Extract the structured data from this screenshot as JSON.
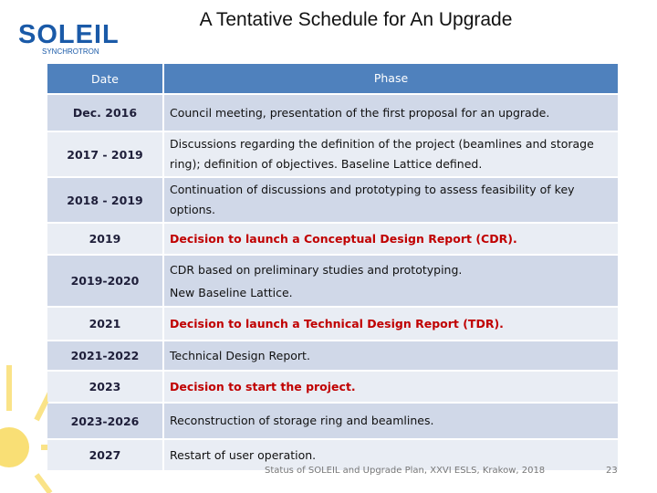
{
  "logo": {
    "name": "SOLEIL",
    "subtitle": "SYNCHROTRON"
  },
  "header": {
    "title": "A Tentative Schedule for An Upgrade"
  },
  "table": {
    "columns": [
      "Date",
      "Phase"
    ],
    "rows": [
      {
        "date": "Dec. 2016",
        "phase": [
          "Council meeting, presentation of the first proposal for an upgrade."
        ],
        "highlight": false
      },
      {
        "date": "2017 - 2019",
        "phase": [
          "Discussions regarding the definition of the project (beamlines and storage ring); definition of objectives. Baseline Lattice defined."
        ],
        "highlight": false
      },
      {
        "date": "2018 - 2019",
        "phase": [
          "Continuation of discussions and prototyping to assess feasibility of key options."
        ],
        "highlight": false
      },
      {
        "date": "2019",
        "phase": [
          "Decision to launch a Conceptual Design Report (CDR)."
        ],
        "highlight": true
      },
      {
        "date": "2019-2020",
        "phase": [
          "CDR based on preliminary studies and prototyping.",
          "New Baseline Lattice."
        ],
        "highlight": false
      },
      {
        "date": "2021",
        "phase": [
          "Decision to launch a Technical Design Report (TDR)."
        ],
        "highlight": true
      },
      {
        "date": "2021-2022",
        "phase": [
          "Technical Design Report."
        ],
        "highlight": false
      },
      {
        "date": "2023",
        "phase": [
          "Decision to start the project."
        ],
        "highlight": true
      },
      {
        "date": "2023-2026",
        "phase": [
          "Reconstruction of storage ring and beamlines."
        ],
        "highlight": false
      },
      {
        "date": "2027",
        "phase": [
          "Restart of user operation."
        ],
        "highlight": false
      }
    ]
  },
  "footer": {
    "text": "Status of SOLEIL and Upgrade Plan, XXVI ESLS, Krakow, 2018",
    "page": "23"
  }
}
